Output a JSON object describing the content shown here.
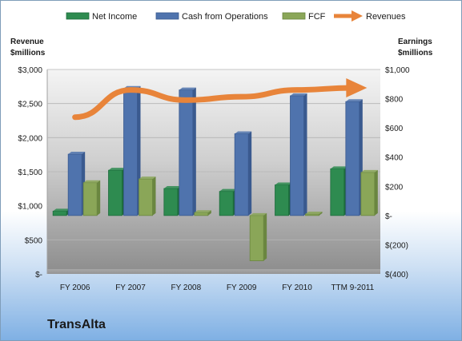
{
  "company": "TransAlta",
  "colors": {
    "net_income": "#2e8b50",
    "cfo": "#4f73ad",
    "fcf": "#8aa658",
    "revenues": "#e8843a"
  },
  "chart_data": {
    "type": "bar",
    "categories": [
      "FY 2006",
      "FY 2007",
      "FY 2008",
      "FY 2009",
      "FY 2010",
      "TTM 9-2011"
    ],
    "left_axis": {
      "title": [
        "Revenue",
        "$millions"
      ],
      "ylim": [
        0,
        3000
      ],
      "ticks": [
        0,
        500,
        1000,
        1500,
        2000,
        2500,
        3000
      ],
      "tick_labels": [
        "$-",
        "$500",
        "$1,000",
        "$1,500",
        "$2,000",
        "$2,500",
        "$3,000"
      ]
    },
    "right_axis": {
      "title": [
        "Earnings",
        "$millions"
      ],
      "ylim": [
        -400,
        1000
      ],
      "ticks": [
        -400,
        -200,
        0,
        200,
        400,
        600,
        800,
        1000
      ],
      "tick_labels": [
        "$(400)",
        "$(200)",
        "$-",
        "$200",
        "$400",
        "$600",
        "$800",
        "$1,000"
      ]
    },
    "series": [
      {
        "name": "Net Income",
        "axis": "right",
        "kind": "bar",
        "values": [
          30,
          310,
          185,
          165,
          210,
          320
        ]
      },
      {
        "name": "Cash from Operations",
        "axis": "right",
        "kind": "bar",
        "values": [
          420,
          870,
          860,
          560,
          820,
          780
        ]
      },
      {
        "name": "FCF",
        "axis": "right",
        "kind": "bar",
        "values": [
          225,
          250,
          20,
          -310,
          10,
          295
        ]
      },
      {
        "name": "Revenues",
        "axis": "left",
        "kind": "line",
        "values": [
          2300,
          2700,
          2550,
          2600,
          2700,
          2730
        ]
      }
    ],
    "legend": [
      "Net Income",
      "Cash from Operations",
      "FCF",
      "Revenues"
    ],
    "legend_position": "top"
  }
}
